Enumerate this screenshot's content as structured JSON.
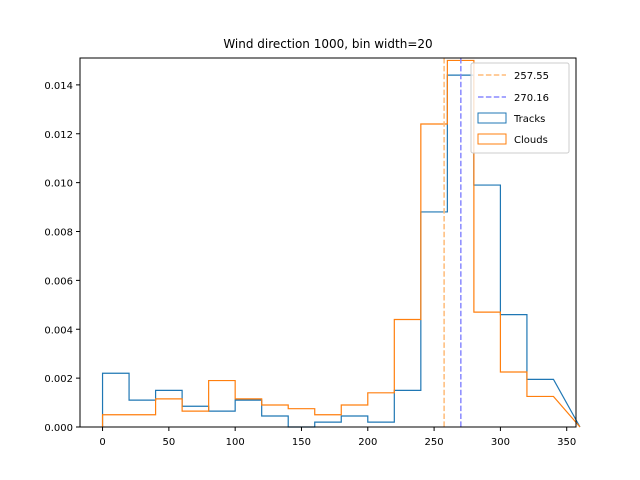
{
  "chart_data": {
    "type": "histogram",
    "title": "Wind direction 1000, bin width=20",
    "xlabel": "",
    "ylabel": "",
    "xlim": [
      -17,
      357
    ],
    "ylim": [
      0,
      0.0151
    ],
    "xticks": [
      0,
      50,
      100,
      150,
      200,
      250,
      300,
      350
    ],
    "yticks": [
      0.0,
      0.002,
      0.004,
      0.006,
      0.008,
      0.01,
      0.012,
      0.014
    ],
    "ytick_labels": [
      "0.000",
      "0.002",
      "0.004",
      "0.006",
      "0.008",
      "0.010",
      "0.012",
      "0.014"
    ],
    "bin_edges": [
      0,
      20,
      40,
      60,
      80,
      100,
      120,
      140,
      160,
      180,
      200,
      220,
      240,
      260,
      280,
      300,
      320,
      340
    ],
    "series": [
      {
        "name": "Tracks",
        "color": "#1f77b4",
        "values": [
          0.0022,
          0.0011,
          0.0015,
          0.00085,
          0.00065,
          0.0011,
          0.00045,
          0.0,
          0.0002,
          0.00045,
          0.0002,
          0.0015,
          0.0088,
          0.0144,
          0.0099,
          0.0046,
          0.00195
        ]
      },
      {
        "name": "Clouds",
        "color": "#ff7f0e",
        "values": [
          0.0005,
          0.0005,
          0.00115,
          0.00065,
          0.0019,
          0.00115,
          0.0009,
          0.00075,
          0.0005,
          0.0009,
          0.0014,
          0.0044,
          0.0124,
          0.015,
          0.0047,
          0.00225,
          0.00125
        ]
      }
    ],
    "vlines": [
      {
        "label": "257.55",
        "x": 257.55,
        "color": "#ffbb78",
        "style": "dashed"
      },
      {
        "label": "270.16",
        "x": 270.16,
        "color": "#8888ff",
        "style": "dashed"
      }
    ],
    "legend": {
      "position": "top-right",
      "entries": [
        "257.55",
        "270.16",
        "Tracks",
        "Clouds"
      ]
    },
    "grid": false
  }
}
